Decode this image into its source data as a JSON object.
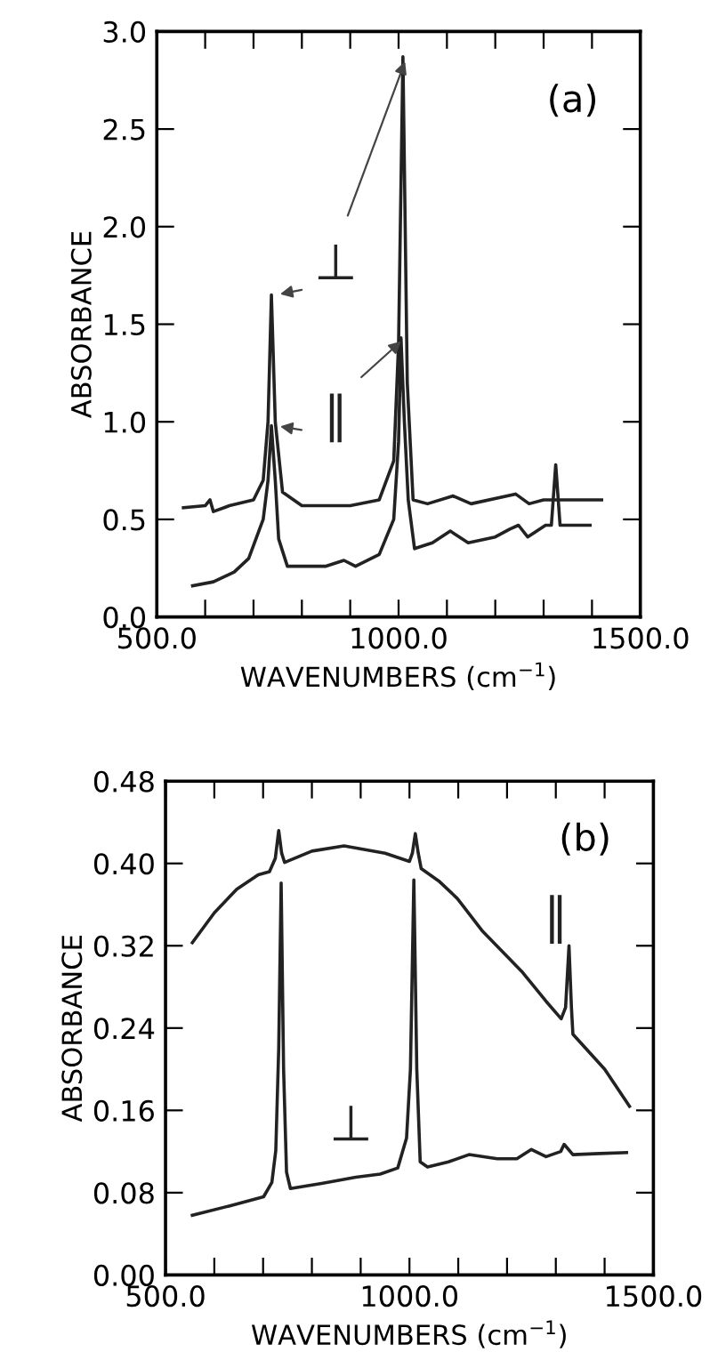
{
  "chart_data": [
    {
      "type": "line",
      "xlabel": "WAVENUMBERS (cm$^{−1}$)",
      "ylabel": "ABSORBANCE",
      "annotations": [
        "(a)"
      ],
      "xlim": [
        500,
        1500
      ],
      "xticks": [
        {
          "value": 500,
          "label": "500.0"
        },
        {
          "value": 600,
          "label": null
        },
        {
          "value": 700,
          "label": null
        },
        {
          "value": 800,
          "label": null
        },
        {
          "value": 900,
          "label": null
        },
        {
          "value": 1000,
          "label": "1000.0"
        },
        {
          "value": 1100,
          "label": null
        },
        {
          "value": 1200,
          "label": null
        },
        {
          "value": 1300,
          "label": null
        },
        {
          "value": 1400,
          "label": null
        },
        {
          "value": 1500,
          "label": "1500.0"
        }
      ],
      "ylim": [
        0,
        3.0
      ],
      "yticks": [
        {
          "value": 0,
          "label": "0.0"
        },
        {
          "value": 0.5,
          "label": "0.5"
        },
        {
          "value": 1.0,
          "label": "1.0"
        },
        {
          "value": 1.5,
          "label": "1.5"
        },
        {
          "value": 2.0,
          "label": "2.0"
        },
        {
          "value": 2.5,
          "label": "2.5"
        },
        {
          "value": 3.0,
          "label": "3.0"
        }
      ],
      "grid": false,
      "legend": false,
      "marker": "none",
      "line_style": "solid",
      "series": [
        {
          "name": "⊥",
          "color": "#222222",
          "x": [
            555,
            600,
            610,
            617,
            650,
            700,
            720,
            730,
            737,
            745,
            760,
            800,
            900,
            960,
            990,
            1000,
            1009,
            1018,
            1030,
            1060,
            1113,
            1150,
            1242,
            1270,
            1300,
            1420
          ],
          "values": [
            0.56,
            0.57,
            0.6,
            0.54,
            0.57,
            0.6,
            0.7,
            1.0,
            1.65,
            1.0,
            0.64,
            0.57,
            0.57,
            0.6,
            0.8,
            1.4,
            2.87,
            1.2,
            0.6,
            0.58,
            0.62,
            0.58,
            0.63,
            0.58,
            0.6,
            0.6
          ]
        },
        {
          "name": "∥",
          "color": "#222222",
          "x": [
            574,
            617,
            660,
            690,
            720,
            730,
            737,
            745,
            752,
            770,
            850,
            887,
            911,
            960,
            990,
            1000,
            1005,
            1012,
            1020,
            1033,
            1070,
            1107,
            1144,
            1200,
            1230,
            1248,
            1267,
            1304,
            1316,
            1325,
            1334,
            1396
          ],
          "values": [
            0.16,
            0.18,
            0.23,
            0.3,
            0.5,
            0.7,
            0.98,
            0.7,
            0.4,
            0.26,
            0.26,
            0.29,
            0.26,
            0.32,
            0.5,
            0.9,
            1.43,
            1.0,
            0.6,
            0.35,
            0.38,
            0.44,
            0.38,
            0.41,
            0.45,
            0.47,
            0.41,
            0.47,
            0.47,
            0.78,
            0.47,
            0.47
          ]
        }
      ]
    },
    {
      "type": "line",
      "xlabel": "WAVENUMBERS (cm$^{−1}$)",
      "ylabel": "ABSORBANCE",
      "annotations": [
        "(b)"
      ],
      "xlim": [
        500,
        1500
      ],
      "xticks": [
        {
          "value": 500,
          "label": "500.0"
        },
        {
          "value": 600,
          "label": null
        },
        {
          "value": 700,
          "label": null
        },
        {
          "value": 800,
          "label": null
        },
        {
          "value": 900,
          "label": null
        },
        {
          "value": 1000,
          "label": "1000.0"
        },
        {
          "value": 1100,
          "label": null
        },
        {
          "value": 1200,
          "label": null
        },
        {
          "value": 1300,
          "label": null
        },
        {
          "value": 1400,
          "label": null
        },
        {
          "value": 1500,
          "label": "1500.0"
        }
      ],
      "ylim": [
        0,
        0.48
      ],
      "yticks": [
        {
          "value": 0,
          "label": "0.00"
        },
        {
          "value": 0.08,
          "label": "0.08"
        },
        {
          "value": 0.16,
          "label": "0.16"
        },
        {
          "value": 0.24,
          "label": "0.24"
        },
        {
          "value": 0.32,
          "label": "0.32"
        },
        {
          "value": 0.4,
          "label": "0.40"
        },
        {
          "value": 0.48,
          "label": "0.48"
        }
      ],
      "grid": false,
      "legend": false,
      "marker": "none",
      "line_style": "solid",
      "series": [
        {
          "name": "∥",
          "color": "#222222",
          "x": [
            555,
            600,
            646,
            690,
            713,
            725,
            732,
            738,
            744,
            800,
            866,
            950,
            1000,
            1006,
            1012,
            1018,
            1024,
            1060,
            1098,
            1150,
            1232,
            1280,
            1311,
            1320,
            1327,
            1332,
            1335,
            1400,
            1451
          ],
          "values": [
            0.323,
            0.352,
            0.375,
            0.389,
            0.392,
            0.405,
            0.432,
            0.41,
            0.401,
            0.412,
            0.417,
            0.41,
            0.402,
            0.41,
            0.429,
            0.41,
            0.395,
            0.383,
            0.366,
            0.334,
            0.294,
            0.266,
            0.249,
            0.26,
            0.32,
            0.26,
            0.234,
            0.2,
            0.164
          ]
        },
        {
          "name": "⊥",
          "color": "#222222",
          "x": [
            555,
            630,
            701,
            718,
            726,
            732,
            737,
            742,
            748,
            756,
            820,
            890,
            940,
            976,
            994,
            1002,
            1009,
            1015,
            1022,
            1037,
            1080,
            1122,
            1180,
            1220,
            1250,
            1280,
            1310,
            1317,
            1335,
            1390,
            1445
          ],
          "values": [
            0.058,
            0.067,
            0.076,
            0.09,
            0.121,
            0.22,
            0.381,
            0.2,
            0.1,
            0.084,
            0.089,
            0.095,
            0.098,
            0.104,
            0.133,
            0.2,
            0.384,
            0.2,
            0.11,
            0.105,
            0.11,
            0.117,
            0.113,
            0.113,
            0.122,
            0.115,
            0.12,
            0.127,
            0.117,
            0.118,
            0.119
          ]
        }
      ]
    }
  ]
}
